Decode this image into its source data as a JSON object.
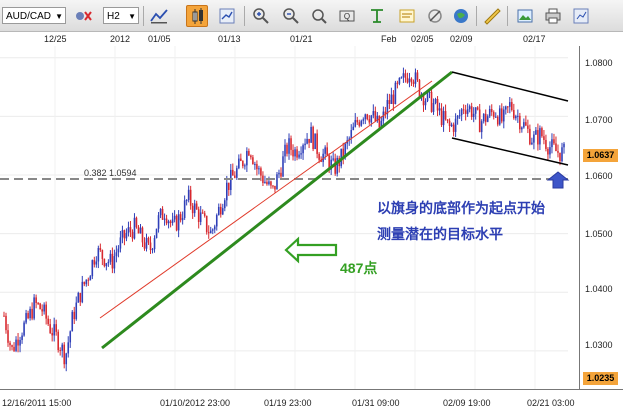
{
  "toolbar": {
    "symbol": "AUD/CAD",
    "timeframe": "H2",
    "icons": [
      "pair-settings-icon",
      "bar-chart-type-icon",
      "line-chart-type-icon",
      "candlestick-icon",
      "indicator-icon",
      "zoom-in-icon",
      "zoom-out-icon",
      "zoom-area-icon",
      "crosshair-icon",
      "note-icon",
      "draw-tool-icon",
      "globe-icon",
      "ruler-icon",
      "image-export-icon",
      "print-icon",
      "help-icon"
    ]
  },
  "top_dates": [
    "12/25",
    "2012",
    "01/05",
    "01/13",
    "01/21",
    "Feb",
    "02/05",
    "02/09",
    "02/17"
  ],
  "price_axis": {
    "ticks": [
      "1.0800",
      "1.0700",
      "1.0600",
      "1.0500",
      "1.0400",
      "1.0300"
    ],
    "current_price": "1.0637",
    "current_price_color": "#f4a43a",
    "low_price": "1.0235",
    "low_price_color": "#f4a43a"
  },
  "time_axis": [
    "12/16/2011 15:00",
    "01/10/2012 23:00",
    "01/19 23:00",
    "01/31 09:00",
    "02/09 19:00",
    "02/21 03:00"
  ],
  "fib_level": {
    "label": "0.382 1.0594"
  },
  "annotations": {
    "note_line1": "以旗身的底部作为起点开始",
    "note_line2": "测量潜在的目标水平",
    "pips_label": "487点",
    "note_color": "#2d3fb3",
    "pips_color": "#34a023"
  },
  "chart_data": {
    "type": "candlestick",
    "symbol": "AUD/CAD",
    "timeframe": "H2",
    "ylim": [
      1.0235,
      1.082
    ],
    "y_ticks": [
      1.03,
      1.04,
      1.05,
      1.06,
      1.07,
      1.08
    ],
    "current_price": 1.0637,
    "fib_level": {
      "ratio": 0.382,
      "price": 1.0594
    },
    "approx_close_path": [
      1.036,
      1.03,
      1.033,
      1.035,
      1.038,
      1.037,
      1.034,
      1.032,
      1.029,
      1.036,
      1.04,
      1.043,
      1.047,
      1.046,
      1.045,
      1.048,
      1.05,
      1.051,
      1.049,
      1.047,
      1.052,
      1.054,
      1.051,
      1.053,
      1.056,
      1.054,
      1.052,
      1.05,
      1.054,
      1.058,
      1.06,
      1.062,
      1.065,
      1.061,
      1.059,
      1.057,
      1.061,
      1.065,
      1.064,
      1.066,
      1.067,
      1.064,
      1.063,
      1.061,
      1.063,
      1.066,
      1.069,
      1.071,
      1.07,
      1.068,
      1.072,
      1.074,
      1.076,
      1.078,
      1.075,
      1.073,
      1.072,
      1.07,
      1.068,
      1.069,
      1.072,
      1.071,
      1.069,
      1.07,
      1.071,
      1.069,
      1.072,
      1.07,
      1.068,
      1.066,
      1.067,
      1.065,
      1.064,
      1.0637
    ]
  }
}
